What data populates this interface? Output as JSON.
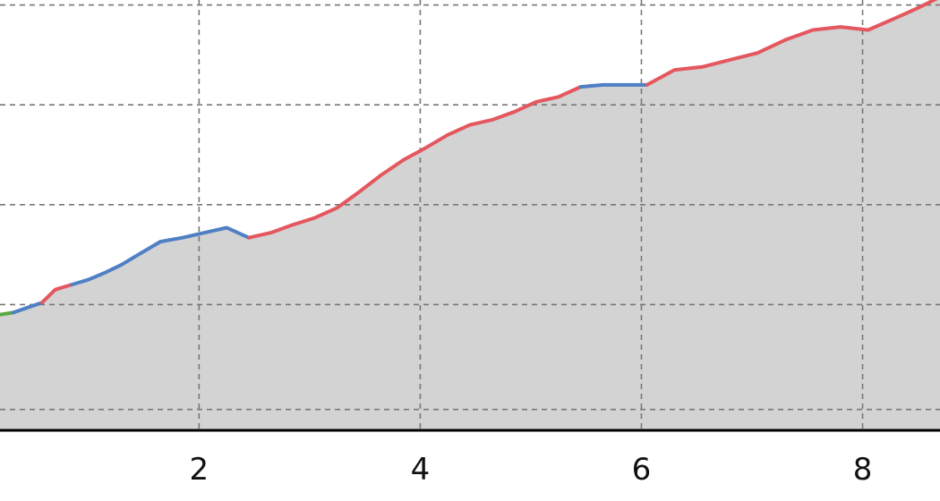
{
  "chart_data": {
    "type": "area",
    "title": "",
    "xlabel": "",
    "ylabel": "",
    "xlim": [
      0.2,
      8.7
    ],
    "ylim": [
      0,
      4.3
    ],
    "grid": true,
    "x_ticks": [
      2,
      4,
      6,
      8
    ],
    "x_tick_labels": [
      "2",
      "4",
      "6",
      "8"
    ],
    "y_grid_values": [
      0.2,
      1.25,
      2.25,
      3.25,
      4.25
    ],
    "fill_color": "#d3d3d3",
    "axis_color": "#000000",
    "grid_color": "#777777",
    "points": [
      [
        0.2,
        1.15
      ],
      [
        0.32,
        1.17
      ],
      [
        0.45,
        1.22
      ],
      [
        0.58,
        1.27
      ],
      [
        0.7,
        1.4
      ],
      [
        0.85,
        1.45
      ],
      [
        1.0,
        1.5
      ],
      [
        1.15,
        1.57
      ],
      [
        1.3,
        1.65
      ],
      [
        1.45,
        1.75
      ],
      [
        1.65,
        1.88
      ],
      [
        1.85,
        1.92
      ],
      [
        2.05,
        1.97
      ],
      [
        2.25,
        2.02
      ],
      [
        2.45,
        1.92
      ],
      [
        2.65,
        1.97
      ],
      [
        2.85,
        2.05
      ],
      [
        3.05,
        2.12
      ],
      [
        3.25,
        2.22
      ],
      [
        3.45,
        2.38
      ],
      [
        3.65,
        2.55
      ],
      [
        3.85,
        2.7
      ],
      [
        4.05,
        2.82
      ],
      [
        4.25,
        2.95
      ],
      [
        4.45,
        3.05
      ],
      [
        4.65,
        3.1
      ],
      [
        4.85,
        3.18
      ],
      [
        5.05,
        3.28
      ],
      [
        5.25,
        3.33
      ],
      [
        5.45,
        3.43
      ],
      [
        5.65,
        3.45
      ],
      [
        5.85,
        3.45
      ],
      [
        6.05,
        3.45
      ],
      [
        6.3,
        3.6
      ],
      [
        6.55,
        3.63
      ],
      [
        6.8,
        3.7
      ],
      [
        7.05,
        3.77
      ],
      [
        7.3,
        3.9
      ],
      [
        7.55,
        4.0
      ],
      [
        7.8,
        4.03
      ],
      [
        8.05,
        4.0
      ],
      [
        8.3,
        4.12
      ],
      [
        8.5,
        4.22
      ],
      [
        8.7,
        4.33
      ]
    ],
    "segments": [
      {
        "from": 0.2,
        "to": 0.32,
        "color": "#5aa847"
      },
      {
        "from": 0.32,
        "to": 0.58,
        "color": "#4f7fc4"
      },
      {
        "from": 0.58,
        "to": 0.85,
        "color": "#e4575f"
      },
      {
        "from": 0.85,
        "to": 2.45,
        "color": "#4f7fc4"
      },
      {
        "from": 2.45,
        "to": 5.45,
        "color": "#e4575f"
      },
      {
        "from": 5.45,
        "to": 6.05,
        "color": "#4f7fc4"
      },
      {
        "from": 6.05,
        "to": 8.7,
        "color": "#e4575f"
      }
    ]
  }
}
